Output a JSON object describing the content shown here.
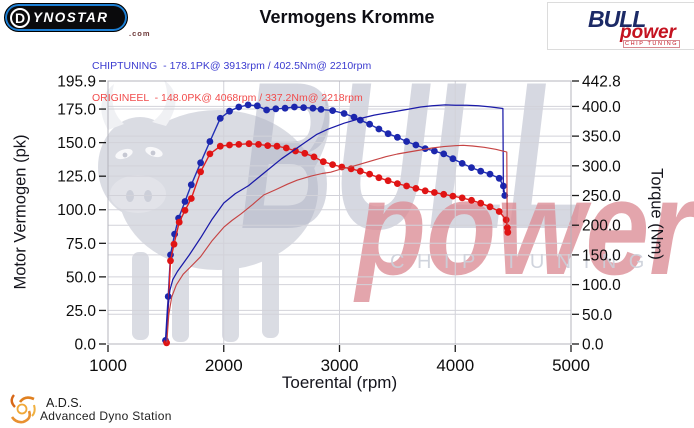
{
  "header": {
    "title": "Vermogens Kromme",
    "dynostar": {
      "d": "D",
      "rest": "YNOSTAR",
      "suffix": ".com"
    },
    "bullpower": {
      "bull": "BULL",
      "power": "power",
      "chip": "CHIP TUNING"
    }
  },
  "legend": {
    "chiptuning": "CHIPTUNING  - 178.1PK@ 3913rpm / 402.5Nm@ 2210rpm",
    "origineel": "ORIGINEEL  - 148.0PK@ 4068rpm / 337.2Nm@ 2218rpm"
  },
  "watermark": {
    "bull": "BULL",
    "power": "power",
    "chip": "CHIP TUNING"
  },
  "footer": {
    "ads": "A.D.S.",
    "station": "Advanced Dyno Station"
  },
  "colors": {
    "chip_power_line": "#1a1aa8",
    "chip_torque_line": "#2230b5",
    "chip_torque_marker": "#1c27ad",
    "orig_power_line": "#c64444",
    "orig_torque_line": "#e02020",
    "orig_torque_marker": "#e01414",
    "grid": "#d2d2d9",
    "border": "#b4b4bc",
    "tick": "#1a1a1a",
    "legend_blue": "#3b3bd0",
    "legend_red": "#f14b4b",
    "watermark_gray": "#aeb2c4",
    "watermark_pink": "#dd8f98"
  },
  "chart_data": {
    "type": "line",
    "title": "Vermogens Kromme",
    "xlabel": "Toerental (rpm)",
    "ylabel_left": "Motor Vermogen (pk)",
    "ylabel_right": "Torque (Nm)",
    "x_range": [
      1000,
      5000
    ],
    "left_range": [
      0,
      195.9
    ],
    "right_range": [
      0,
      442.8
    ],
    "grid": true,
    "x_ticks": [
      1000,
      2000,
      3000,
      4000,
      5000
    ],
    "x_tick_labels": [
      "1000",
      "2000",
      "3000",
      "4000",
      "5000"
    ],
    "left_ticks": [
      0,
      25,
      50,
      75,
      100,
      125,
      150,
      175,
      195.9
    ],
    "left_tick_labels": [
      "0.0",
      "25.0",
      "50.0",
      "75.0",
      "100.0",
      "125.0",
      "150.0",
      "175.0",
      "195.9"
    ],
    "right_ticks": [
      0,
      50,
      100,
      150,
      200,
      250,
      300,
      350,
      400,
      442.8
    ],
    "right_tick_labels": [
      "0.0",
      "50.0",
      "100.0",
      "150.0",
      "200.0",
      "250.0",
      "300.0",
      "350.0",
      "400.0",
      "442.8"
    ],
    "peaks": {
      "chiptuning": {
        "power_pk": 178.1,
        "power_rpm": 3913,
        "torque_nm": 402.5,
        "torque_rpm": 2210
      },
      "origineel": {
        "power_pk": 148.0,
        "power_rpm": 4068,
        "torque_nm": 337.2,
        "torque_rpm": 2218
      }
    },
    "series": [
      {
        "name": "chiptuning-torque",
        "axis": "right",
        "markers": true,
        "color_key": "chip_torque_line",
        "marker_key": "chip_torque_marker",
        "width": 1.4,
        "points": [
          [
            1497,
            6
          ],
          [
            1520,
            80
          ],
          [
            1540,
            150
          ],
          [
            1575,
            185
          ],
          [
            1610,
            212
          ],
          [
            1665,
            240
          ],
          [
            1720,
            268
          ],
          [
            1800,
            305
          ],
          [
            1880,
            341
          ],
          [
            1970,
            380
          ],
          [
            2050,
            392
          ],
          [
            2130,
            399
          ],
          [
            2210,
            402.5
          ],
          [
            2290,
            401
          ],
          [
            2370,
            394
          ],
          [
            2450,
            396
          ],
          [
            2530,
            397
          ],
          [
            2610,
            399
          ],
          [
            2690,
            398
          ],
          [
            2770,
            397
          ],
          [
            2840,
            395
          ],
          [
            2940,
            393
          ],
          [
            3040,
            388
          ],
          [
            3125,
            382
          ],
          [
            3180,
            377
          ],
          [
            3260,
            370
          ],
          [
            3340,
            362
          ],
          [
            3420,
            354
          ],
          [
            3500,
            348
          ],
          [
            3580,
            341
          ],
          [
            3660,
            335
          ],
          [
            3740,
            329
          ],
          [
            3820,
            325
          ],
          [
            3900,
            320
          ],
          [
            3980,
            312
          ],
          [
            4060,
            304
          ],
          [
            4140,
            297
          ],
          [
            4220,
            291
          ],
          [
            4300,
            286
          ],
          [
            4380,
            279
          ],
          [
            4416,
            266
          ],
          [
            4428,
            250
          ]
        ]
      },
      {
        "name": "origineel-torque",
        "axis": "right",
        "markers": true,
        "color_key": "orig_torque_line",
        "marker_key": "orig_torque_marker",
        "width": 1.4,
        "points": [
          [
            1506,
            2
          ],
          [
            1540,
            140
          ],
          [
            1570,
            168
          ],
          [
            1615,
            205
          ],
          [
            1665,
            225
          ],
          [
            1720,
            245
          ],
          [
            1800,
            290
          ],
          [
            1880,
            320
          ],
          [
            1970,
            333
          ],
          [
            2050,
            335
          ],
          [
            2130,
            336
          ],
          [
            2218,
            337.2
          ],
          [
            2300,
            336
          ],
          [
            2380,
            334
          ],
          [
            2460,
            333
          ],
          [
            2540,
            330
          ],
          [
            2620,
            325
          ],
          [
            2700,
            321
          ],
          [
            2780,
            315
          ],
          [
            2860,
            307
          ],
          [
            2940,
            302
          ],
          [
            3020,
            298
          ],
          [
            3100,
            295
          ],
          [
            3180,
            291
          ],
          [
            3260,
            286
          ],
          [
            3340,
            280
          ],
          [
            3420,
            275
          ],
          [
            3500,
            270
          ],
          [
            3580,
            266
          ],
          [
            3660,
            262
          ],
          [
            3740,
            258
          ],
          [
            3820,
            255
          ],
          [
            3900,
            252
          ],
          [
            3980,
            249
          ],
          [
            4060,
            246
          ],
          [
            4140,
            242
          ],
          [
            4220,
            237
          ],
          [
            4300,
            231
          ],
          [
            4380,
            223
          ],
          [
            4440,
            209
          ],
          [
            4450,
            196
          ],
          [
            4454,
            188
          ]
        ]
      },
      {
        "name": "chiptuning-power",
        "axis": "left",
        "markers": false,
        "color_key": "chip_power_line",
        "width": 1.25,
        "points": [
          [
            1500,
            2
          ],
          [
            1515,
            25
          ],
          [
            1535,
            40
          ],
          [
            1560,
            48
          ],
          [
            1600,
            54
          ],
          [
            1700,
            66
          ],
          [
            1800,
            79
          ],
          [
            1900,
            93
          ],
          [
            2000,
            105
          ],
          [
            2100,
            112
          ],
          [
            2215,
            118
          ],
          [
            2300,
            124
          ],
          [
            2400,
            131
          ],
          [
            2500,
            138
          ],
          [
            2600,
            144
          ],
          [
            2700,
            150
          ],
          [
            2800,
            156
          ],
          [
            2900,
            160
          ],
          [
            3040,
            164.5
          ],
          [
            3180,
            168
          ],
          [
            3300,
            170.5
          ],
          [
            3400,
            172
          ],
          [
            3500,
            173.5
          ],
          [
            3600,
            175
          ],
          [
            3700,
            176.5
          ],
          [
            3800,
            177.5
          ],
          [
            3913,
            178.1
          ],
          [
            4000,
            177.8
          ],
          [
            4100,
            177.9
          ],
          [
            4200,
            177.4
          ],
          [
            4300,
            176.6
          ],
          [
            4380,
            175.8
          ],
          [
            4412,
            175.4
          ],
          [
            4416,
            113
          ]
        ]
      },
      {
        "name": "origineel-power",
        "axis": "left",
        "markers": false,
        "color_key": "orig_power_line",
        "width": 1.15,
        "points": [
          [
            1508,
            1
          ],
          [
            1525,
            22
          ],
          [
            1550,
            35
          ],
          [
            1590,
            44
          ],
          [
            1650,
            52
          ],
          [
            1720,
            58
          ],
          [
            1800,
            65
          ],
          [
            1900,
            77
          ],
          [
            2000,
            87
          ],
          [
            2070,
            92
          ],
          [
            2150,
            97
          ],
          [
            2250,
            104
          ],
          [
            2345,
            111
          ],
          [
            2450,
            115
          ],
          [
            2550,
            119
          ],
          [
            2634,
            122
          ],
          [
            2750,
            125
          ],
          [
            2850,
            127
          ],
          [
            2924,
            128
          ],
          [
            3000,
            130
          ],
          [
            3100,
            132
          ],
          [
            3200,
            134.5
          ],
          [
            3300,
            137
          ],
          [
            3400,
            139.5
          ],
          [
            3500,
            141.5
          ],
          [
            3600,
            143
          ],
          [
            3700,
            144.5
          ],
          [
            3800,
            146
          ],
          [
            3900,
            147
          ],
          [
            4000,
            147.7
          ],
          [
            4068,
            148
          ],
          [
            4150,
            147.5
          ],
          [
            4250,
            146.5
          ],
          [
            4350,
            145
          ],
          [
            4420,
            143.5
          ],
          [
            4445,
            143
          ],
          [
            4449,
            88
          ]
        ]
      }
    ]
  }
}
